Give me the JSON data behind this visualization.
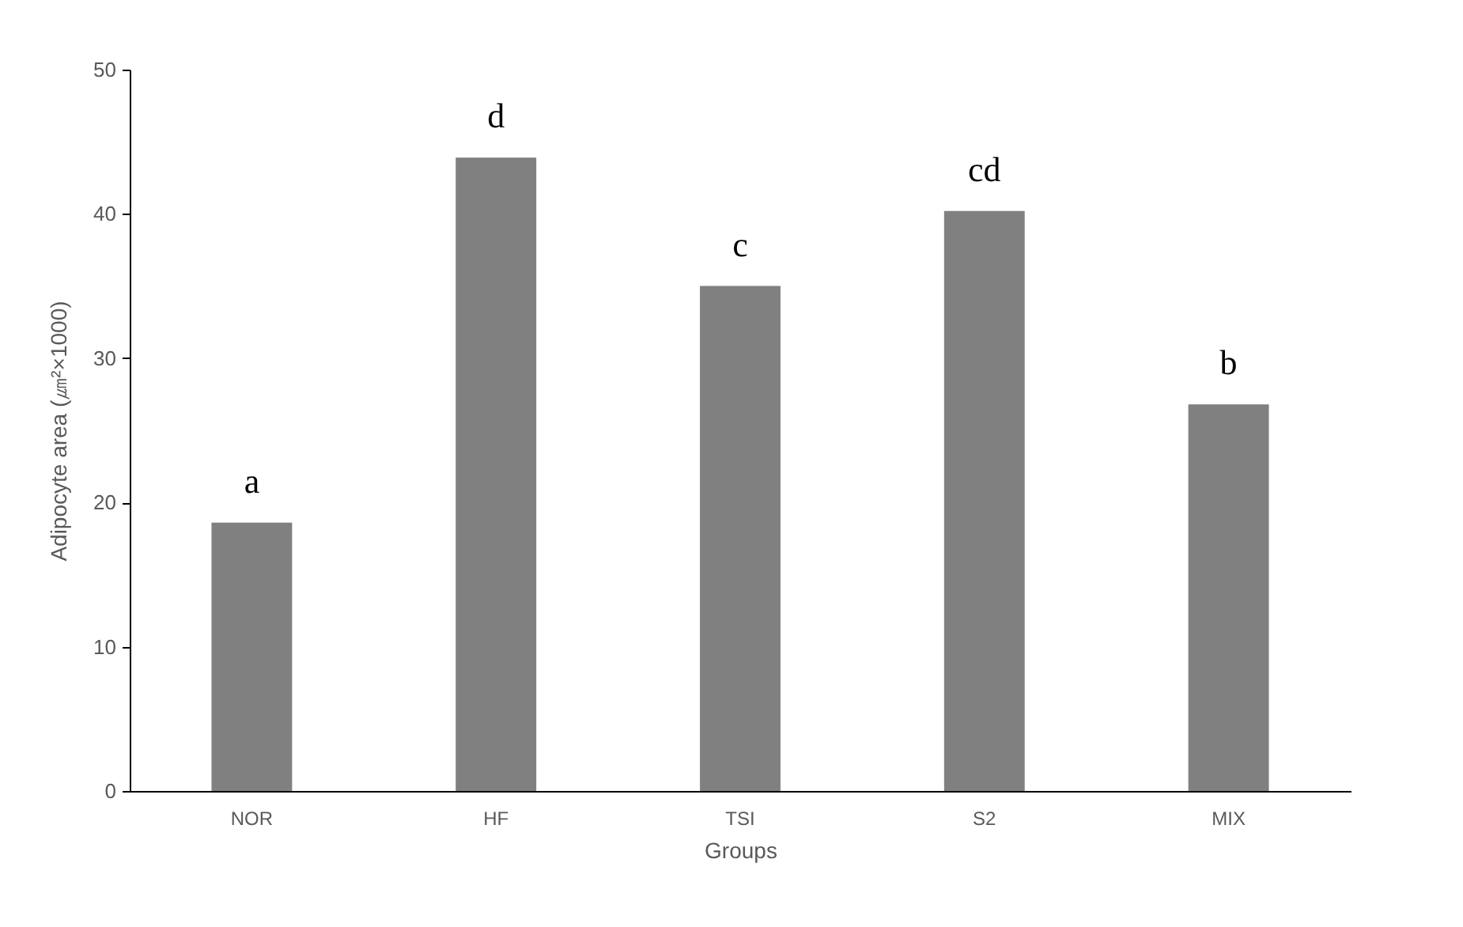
{
  "chart_data": {
    "type": "bar",
    "xlabel": "Groups",
    "ylabel": "Adipocyte area (㎛²×1000)",
    "categories": [
      "NOR",
      "HF",
      "TSI",
      "S2",
      "MIX"
    ],
    "values": [
      18.6,
      43.9,
      35.0,
      40.2,
      26.8
    ],
    "color": "#808080",
    "ylim": [
      0,
      50
    ],
    "yticks": [
      0,
      10,
      20,
      30,
      40,
      50
    ],
    "grid": false,
    "annotations": [
      {
        "text": "a",
        "x": "NOR",
        "y": 18.6
      },
      {
        "text": "d",
        "x": "HF",
        "y": 43.9
      },
      {
        "text": "c",
        "x": "TSI",
        "y": 35.0
      },
      {
        "text": "cd",
        "x": "S2",
        "y": 40.2
      },
      {
        "text": "b",
        "x": "MIX",
        "y": 26.8
      }
    ]
  }
}
